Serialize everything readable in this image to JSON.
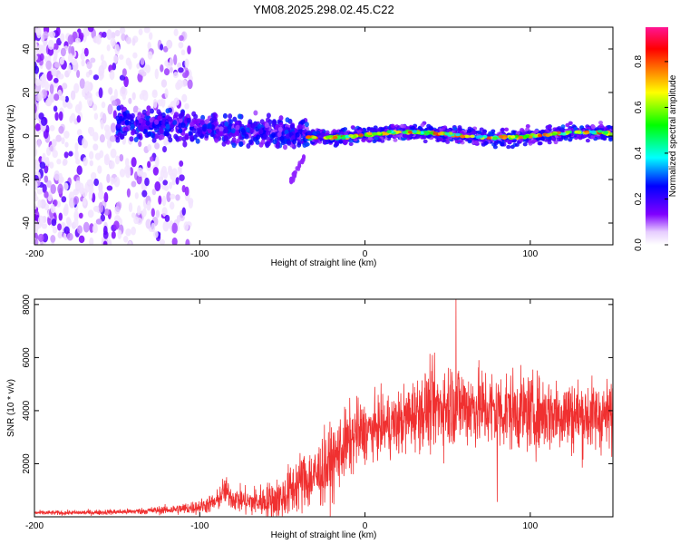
{
  "title": "YM08.2025.298.02.45.C22",
  "chart_data": [
    {
      "type": "heatmap",
      "title": "YM08.2025.298.02.45.C22",
      "xlabel": "Height of straight line (km)",
      "ylabel": "Frequency (Hz)",
      "xlim": [
        -200,
        150
      ],
      "ylim": [
        -50,
        50
      ],
      "xticks": [
        "-200",
        "-100",
        "0",
        "100"
      ],
      "xtick_values": [
        -200,
        -100,
        0,
        100
      ],
      "yticks": [
        "-40",
        "-20",
        "0",
        "20",
        "40"
      ],
      "ytick_values": [
        -40,
        -20,
        0,
        20,
        40
      ],
      "grid": false,
      "colorbar": {
        "label": "Normalized spectral amplitude",
        "range": [
          0,
          0.95
        ],
        "ticks": [
          "0.0",
          "0.2",
          "0.4",
          "0.6",
          "0.8"
        ],
        "tick_values": [
          0.0,
          0.2,
          0.4,
          0.6,
          0.8
        ],
        "colormap": [
          "#ffffff",
          "#e6ccff",
          "#8000ff",
          "#0000ff",
          "#00ffff",
          "#00ff00",
          "#ffff00",
          "#ff8000",
          "#ff0000",
          "#ff1493"
        ]
      },
      "regions": [
        {
          "name": "scattered noise",
          "x_range": [
            -200,
            -105
          ],
          "freq_range": [
            -50,
            50
          ],
          "amplitude": [
            0.0,
            0.2
          ]
        },
        {
          "name": "band onset",
          "x_range": [
            -150,
            -35
          ],
          "freq_range": [
            -4,
            12
          ],
          "amplitude": [
            0.1,
            0.3
          ]
        },
        {
          "name": "sloping branch",
          "x_range": [
            -45,
            -37
          ],
          "freq_range": [
            -21,
            -10
          ],
          "amplitude": [
            0.1,
            0.15
          ]
        },
        {
          "name": "narrow band",
          "x_range": [
            -35,
            150
          ],
          "freq_range": [
            -4,
            6
          ],
          "amplitude": [
            0.1,
            0.95
          ]
        }
      ]
    },
    {
      "type": "line",
      "xlabel": "Height of straight line (km)",
      "ylabel": "SNR (10 * v/v)",
      "xlim": [
        -200,
        150
      ],
      "ylim": [
        0,
        8200
      ],
      "xticks": [
        "-200",
        "-100",
        "0",
        "100"
      ],
      "xtick_values": [
        -200,
        -100,
        0,
        100
      ],
      "yticks": [
        "2000",
        "4000",
        "6000",
        "8000"
      ],
      "ytick_values": [
        2000,
        4000,
        6000,
        8000
      ],
      "grid": false,
      "color": "#f03030",
      "series": [
        {
          "name": "SNR envelope",
          "x": [
            -200,
            -180,
            -160,
            -140,
            -120,
            -110,
            -100,
            -90,
            -85,
            -80,
            -70,
            -60,
            -50,
            -45,
            -40,
            -35,
            -30,
            -25,
            -20,
            -15,
            -10,
            -5,
            0,
            5,
            10,
            15,
            20,
            25,
            30,
            35,
            40,
            50,
            53,
            60,
            70,
            80,
            90,
            100,
            110,
            120,
            130,
            140,
            150
          ],
          "values": [
            150,
            150,
            170,
            200,
            260,
            300,
            380,
            550,
            1000,
            700,
            550,
            600,
            700,
            1000,
            1300,
            1400,
            1500,
            1800,
            2000,
            2500,
            2800,
            3100,
            3200,
            3300,
            3400,
            3450,
            3500,
            3700,
            3900,
            4000,
            4100,
            4200,
            4300,
            4200,
            4100,
            4000,
            4000,
            3900,
            3900,
            3900,
            3800,
            3800,
            3800
          ],
          "noise_spread": [
            80,
            80,
            90,
            100,
            150,
            200,
            250,
            350,
            500,
            400,
            500,
            600,
            800,
            900,
            1000,
            1100,
            1100,
            1200,
            1300,
            1200,
            1200,
            1200,
            1000,
            1000,
            1000,
            1100,
            1100,
            1200,
            1200,
            1300,
            1400,
            1500,
            1500,
            1400,
            1400,
            1400,
            1300,
            1300,
            1300,
            1300,
            1300,
            1200,
            1200
          ]
        }
      ],
      "peaks": [
        {
          "x": 55,
          "value": 8200
        },
        {
          "x": 80,
          "value": 560
        }
      ]
    }
  ]
}
